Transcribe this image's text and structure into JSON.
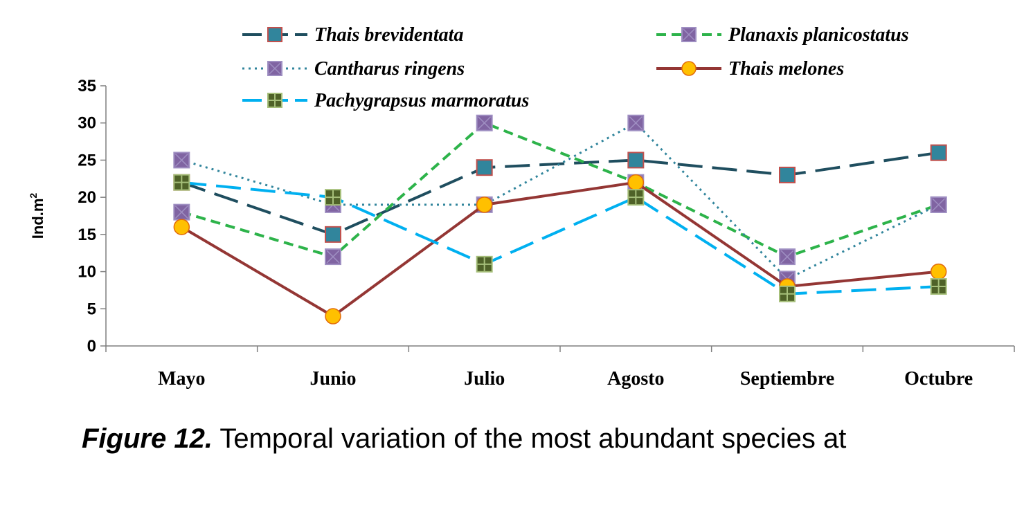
{
  "chart_data": {
    "type": "line",
    "categories": [
      "Mayo",
      "Junio",
      "Julio",
      "Agosto",
      "Septiembre",
      "Octubre"
    ],
    "ylabel": "Ind.m",
    "ylabel_sup": "2",
    "ylim": [
      0,
      35
    ],
    "yticks": [
      0,
      5,
      10,
      15,
      20,
      25,
      30,
      35
    ],
    "grid": false,
    "legend_position": "top",
    "series": [
      {
        "name": "Thais brevidentata",
        "values": [
          22,
          15,
          24,
          25,
          23,
          26
        ],
        "color": "#1f4e5f",
        "dash": "long-dash",
        "marker": "square",
        "marker_fill": "#31859c",
        "marker_stroke": "#c0504d"
      },
      {
        "name": "Planaxis planicostatus",
        "values": [
          18,
          12,
          30,
          22,
          12,
          19
        ],
        "color": "#2db34a",
        "dash": "dash",
        "marker": "square-x",
        "marker_fill": "#8064a2",
        "marker_stroke": "#9f8fc2"
      },
      {
        "name": "Cantharus ringens",
        "values": [
          25,
          19,
          19,
          30,
          9,
          19
        ],
        "color": "#31859c",
        "dash": "dot",
        "marker": "square-x",
        "marker_fill": "#8064a2",
        "marker_stroke": "#9f8fc2"
      },
      {
        "name": "Thais melones",
        "values": [
          16,
          4,
          19,
          22,
          8,
          10
        ],
        "color": "#943634",
        "dash": "solid",
        "marker": "circle",
        "marker_fill": "#ffc000",
        "marker_stroke": "#e26b0a"
      },
      {
        "name": "Pachygrapsus marmoratus",
        "values": [
          22,
          20,
          11,
          20,
          7,
          8
        ],
        "color": "#00b0f0",
        "dash": "long-dash",
        "marker": "square-plus",
        "marker_fill": "#4f6228",
        "marker_stroke": "#a6bf7a"
      }
    ]
  },
  "caption": {
    "lead": "Figure 12.",
    "text": " Temporal variation of the most abundant species at"
  }
}
